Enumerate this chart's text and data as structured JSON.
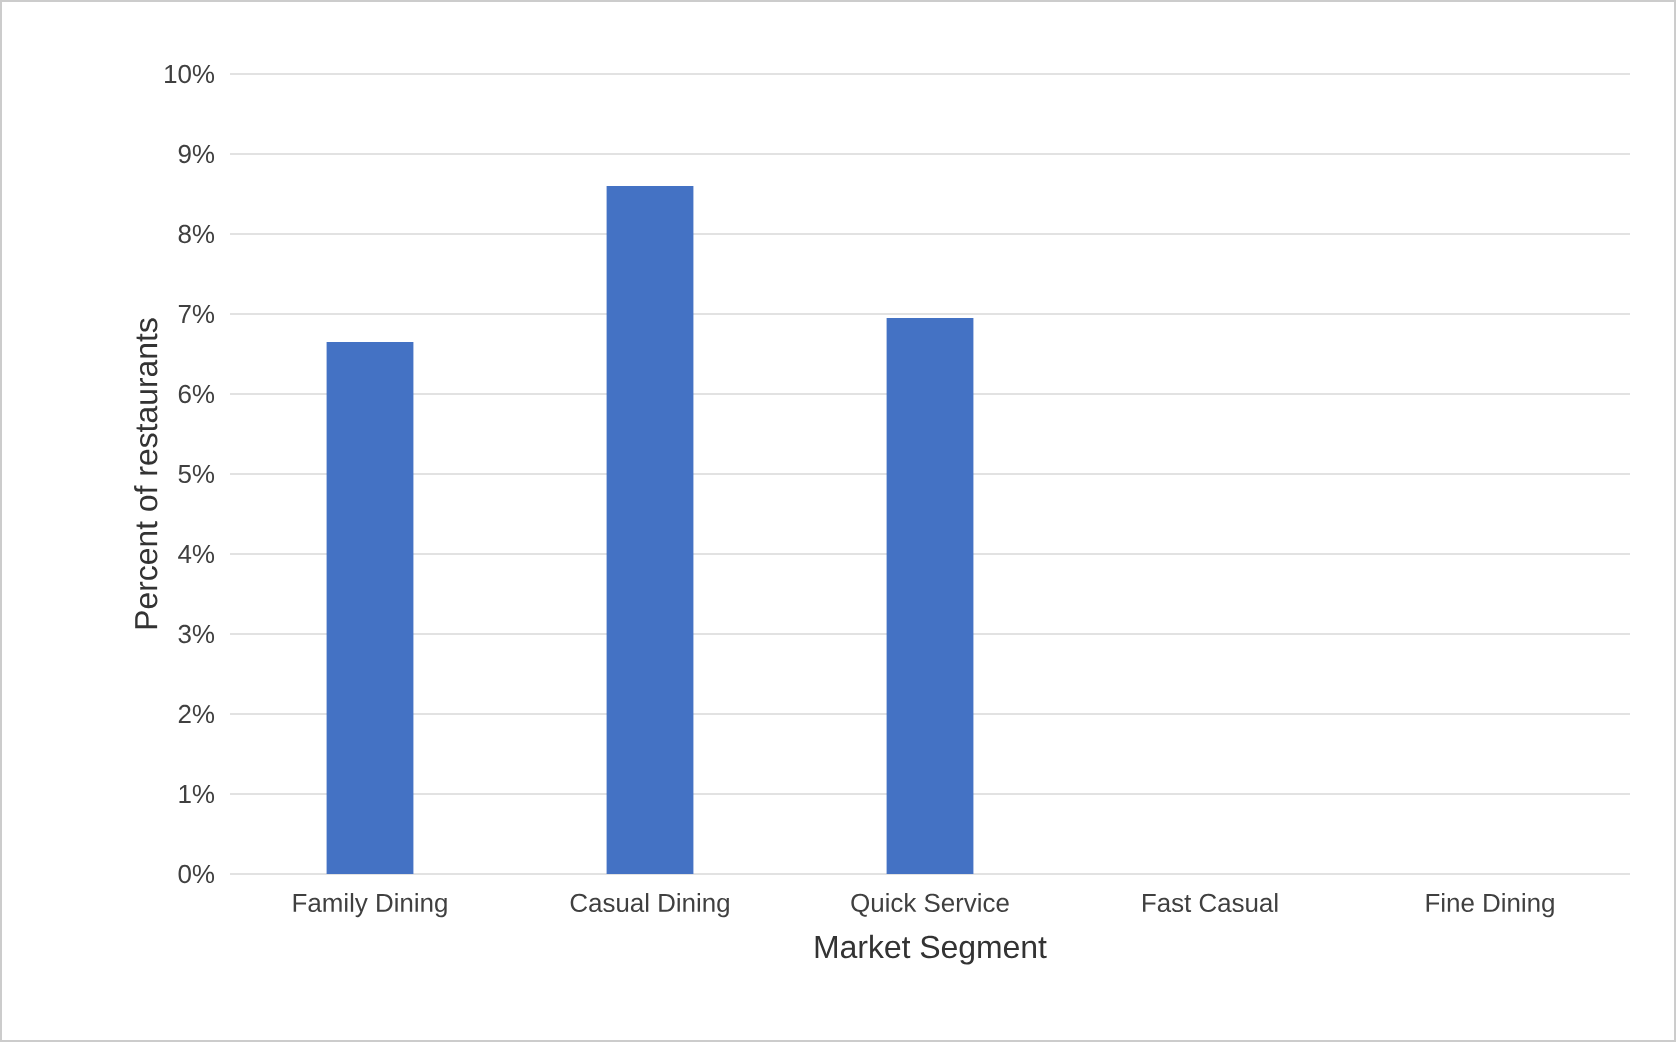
{
  "chart_data": {
    "type": "bar",
    "xlabel": "Market Segment",
    "ylabel": "Percent of restaurants",
    "categories": [
      "Family Dining",
      "Casual Dining",
      "Quick Service",
      "Fast Casual",
      "Fine Dining"
    ],
    "values": [
      6.65,
      8.6,
      6.95,
      0,
      0
    ],
    "color": "#4472c4",
    "ylim": [
      0,
      10
    ],
    "yticks": [
      {
        "value": 0,
        "label": "0%"
      },
      {
        "value": 1,
        "label": "1%"
      },
      {
        "value": 2,
        "label": "2%"
      },
      {
        "value": 3,
        "label": "3%"
      },
      {
        "value": 4,
        "label": "4%"
      },
      {
        "value": 5,
        "label": "5%"
      },
      {
        "value": 6,
        "label": "6%"
      },
      {
        "value": 7,
        "label": "7%"
      },
      {
        "value": 8,
        "label": "8%"
      },
      {
        "value": 9,
        "label": "9%"
      },
      {
        "value": 10,
        "label": "10%"
      }
    ],
    "grid": "y"
  }
}
